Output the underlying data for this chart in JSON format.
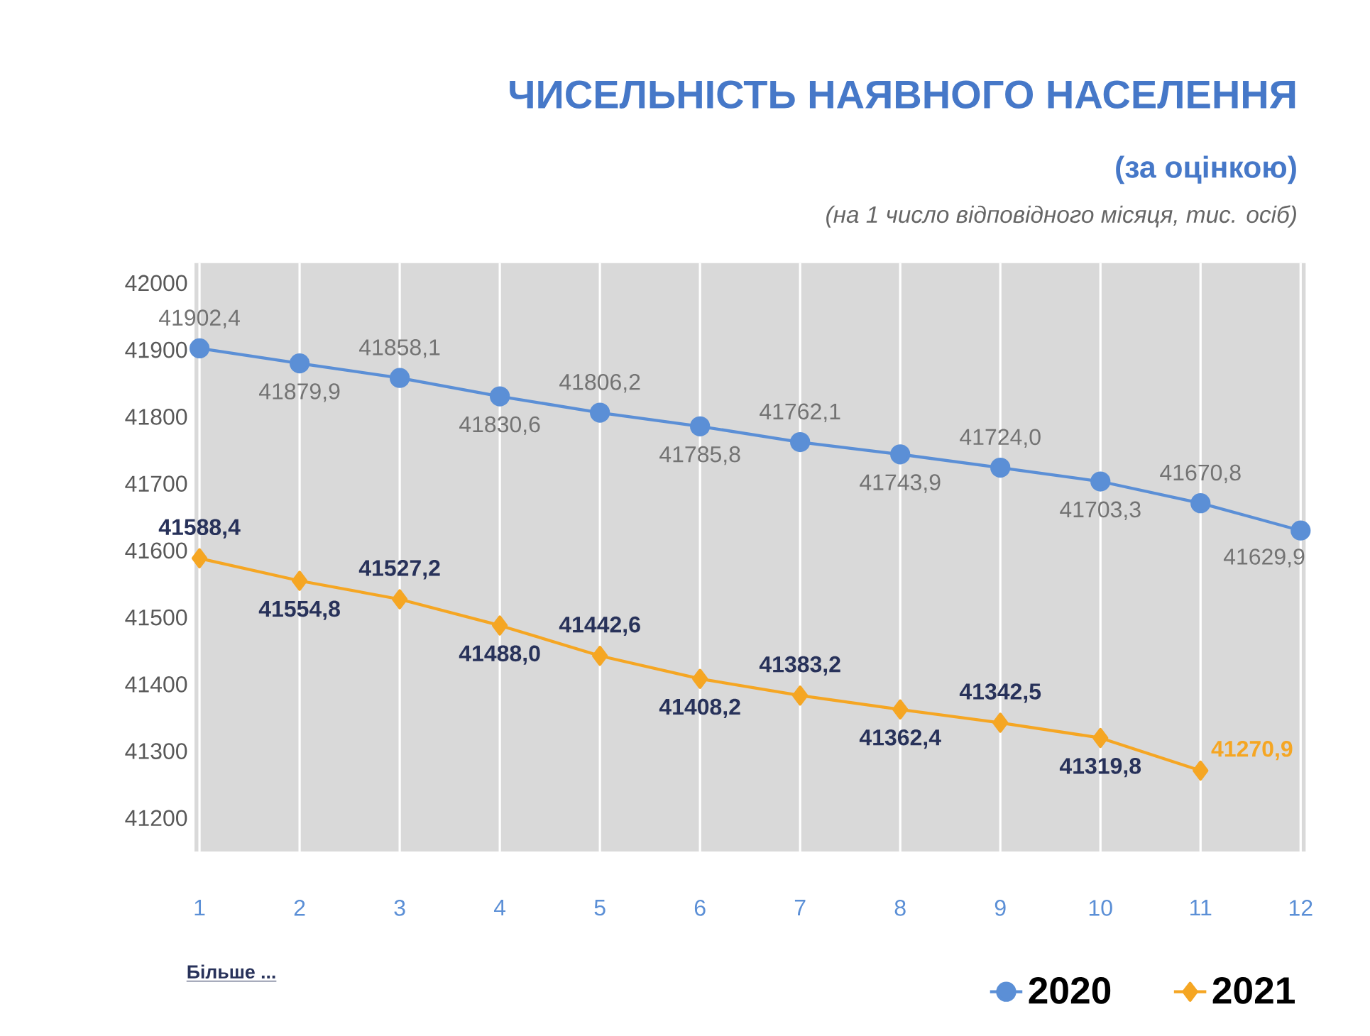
{
  "chart_data": {
    "type": "line",
    "title": "ЧИСЕЛЬНІСТЬ НАЯВНОГО НАСЕЛЕННЯ",
    "subtitle": "(за оцінкою)",
    "annotations": [
      "(на 1 число відповідного місяця, тис. осіб)",
      "Більше ..."
    ],
    "x": [
      1,
      2,
      3,
      4,
      5,
      6,
      7,
      8,
      9,
      10,
      11,
      12
    ],
    "xlim": [
      0.95,
      12.05
    ],
    "xticks": [
      1,
      2,
      3,
      4,
      5,
      6,
      7,
      8,
      9,
      10,
      11,
      12
    ],
    "ylim": [
      41150,
      42030
    ],
    "yticks": [
      41200,
      41300,
      41400,
      41500,
      41600,
      41700,
      41800,
      41900,
      42000
    ],
    "grid": "x",
    "legend": "bottom right",
    "series": [
      {
        "name": "2020",
        "color": "#5b8fd6",
        "marker": "circle",
        "values": [
          41902.4,
          41879.9,
          41858.1,
          41830.6,
          41806.2,
          41785.8,
          41762.1,
          41743.9,
          41724.0,
          41703.3,
          41670.8,
          41629.9
        ],
        "value_labels": [
          "41902,4",
          "41879,9",
          "41858,1",
          "41830,6",
          "41806,2",
          "41785,8",
          "41762,1",
          "41743,9",
          "41724,0",
          "41703,3",
          "41670,8",
          "41629,9"
        ]
      },
      {
        "name": "2021",
        "color": "#f5a623",
        "marker": "diamond",
        "values": [
          41588.4,
          41554.8,
          41527.2,
          41488.0,
          41442.6,
          41408.2,
          41383.2,
          41362.4,
          41342.5,
          41319.8,
          41270.9,
          null
        ],
        "value_labels": [
          "41588,4",
          "41554,8",
          "41527,2",
          "41488,0",
          "41442,6",
          "41408,2",
          "41383,2",
          "41362,4",
          "41342,5",
          "41319,8",
          "41270,9",
          null
        ]
      }
    ]
  }
}
